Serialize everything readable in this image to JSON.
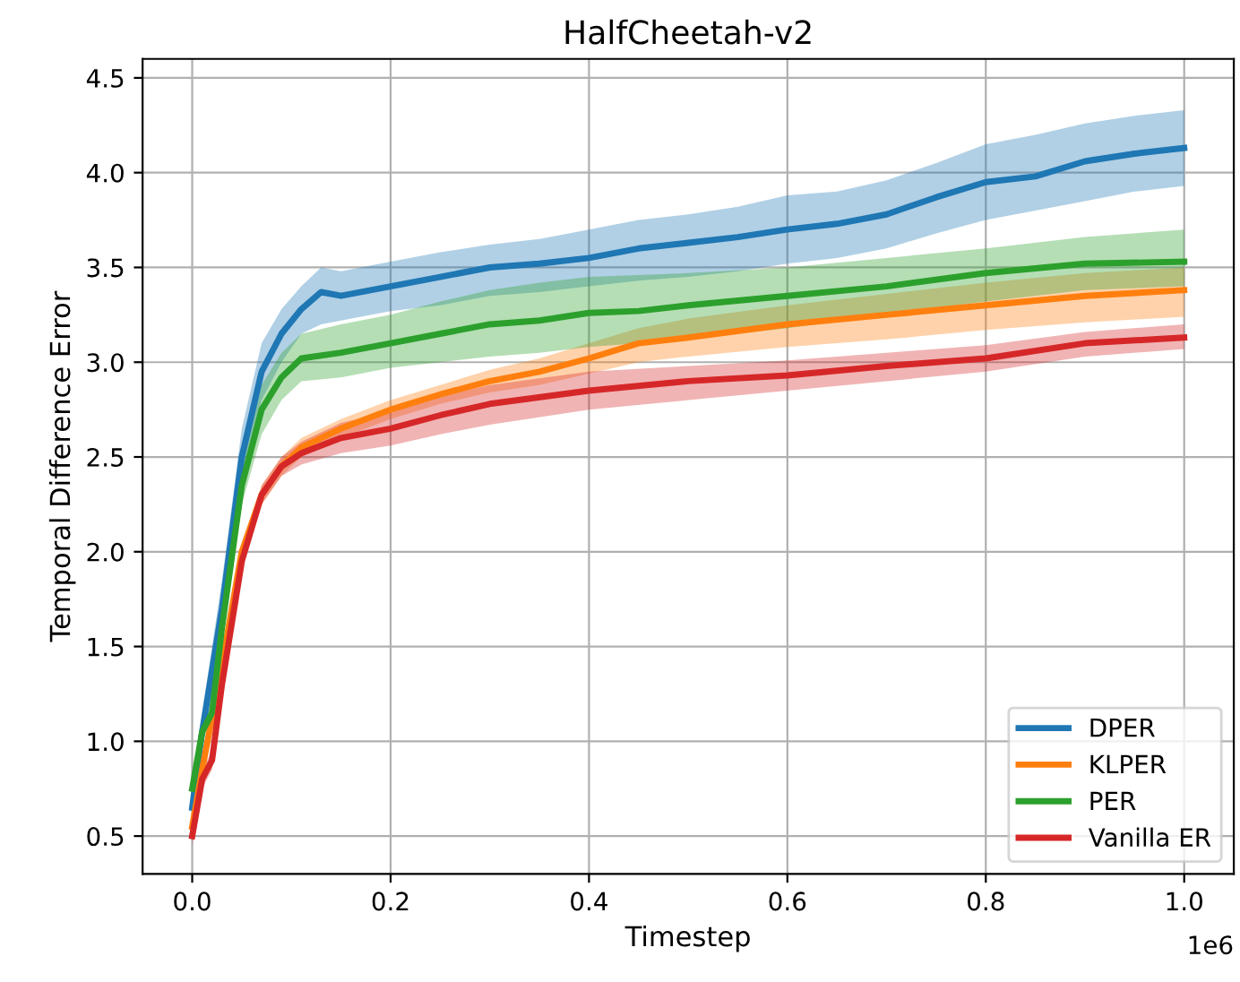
{
  "chart_data": {
    "type": "line",
    "title": "HalfCheetah-v2",
    "xlabel": "Timestep",
    "ylabel": "Temporal Difference Error",
    "annotations": [
      "1e6"
    ],
    "xlim": [
      -0.05,
      1.05
    ],
    "ylim": [
      0.3,
      4.6
    ],
    "xticks": [
      {
        "value": 0,
        "label": "0.0"
      },
      0.2,
      0.4,
      0.6,
      0.8,
      {
        "value": 1,
        "label": "1.0"
      }
    ],
    "yticks": [
      0.5,
      {
        "value": 1,
        "label": "1.0"
      },
      1.5,
      {
        "value": 2,
        "label": "2.0"
      },
      2.5,
      {
        "value": 3,
        "label": "3.0"
      },
      3.5,
      {
        "value": 4,
        "label": "4.0"
      },
      4.5
    ],
    "grid": true,
    "legend": "bottom right",
    "series": [
      {
        "name": "DPER",
        "color": "#1f77b4",
        "x": [
          0,
          0.01,
          0.03,
          0.05,
          0.07,
          0.09,
          0.11,
          0.13,
          0.15,
          0.2,
          0.25,
          0.3,
          0.35,
          0.4,
          0.45,
          0.5,
          0.55,
          0.6,
          0.65,
          0.7,
          0.75,
          0.8,
          0.85,
          0.9,
          0.95,
          1.0
        ],
        "values": [
          0.65,
          1.05,
          1.7,
          2.5,
          2.95,
          3.15,
          3.28,
          3.37,
          3.35,
          3.4,
          3.45,
          3.5,
          3.52,
          3.55,
          3.6,
          3.63,
          3.66,
          3.7,
          3.73,
          3.78,
          3.87,
          3.95,
          3.98,
          4.06,
          4.1,
          4.13
        ],
        "lower": [
          0.6,
          0.95,
          1.55,
          2.35,
          2.8,
          3.0,
          3.15,
          3.2,
          3.22,
          3.27,
          3.3,
          3.35,
          3.37,
          3.4,
          3.43,
          3.45,
          3.48,
          3.52,
          3.55,
          3.6,
          3.68,
          3.75,
          3.8,
          3.85,
          3.9,
          3.93
        ],
        "upper": [
          0.7,
          1.15,
          1.85,
          2.65,
          3.1,
          3.28,
          3.4,
          3.5,
          3.48,
          3.53,
          3.58,
          3.62,
          3.65,
          3.7,
          3.75,
          3.78,
          3.82,
          3.88,
          3.9,
          3.96,
          4.05,
          4.15,
          4.2,
          4.26,
          4.3,
          4.33
        ]
      },
      {
        "name": "KLPER",
        "color": "#ff7f0e",
        "x": [
          0,
          0.01,
          0.03,
          0.05,
          0.07,
          0.09,
          0.11,
          0.15,
          0.2,
          0.25,
          0.3,
          0.35,
          0.4,
          0.45,
          0.5,
          0.6,
          0.7,
          0.8,
          0.9,
          1.0
        ],
        "values": [
          0.55,
          0.85,
          1.4,
          2.0,
          2.3,
          2.45,
          2.55,
          2.65,
          2.75,
          2.83,
          2.9,
          2.95,
          3.02,
          3.1,
          3.13,
          3.2,
          3.25,
          3.3,
          3.35,
          3.38
        ],
        "lower": [
          0.5,
          0.8,
          1.35,
          1.95,
          2.25,
          2.4,
          2.5,
          2.6,
          2.7,
          2.78,
          2.84,
          2.88,
          2.94,
          3.0,
          3.03,
          3.08,
          3.12,
          3.17,
          3.21,
          3.24
        ],
        "upper": [
          0.6,
          0.9,
          1.45,
          2.05,
          2.35,
          2.5,
          2.6,
          2.7,
          2.8,
          2.88,
          2.96,
          3.02,
          3.1,
          3.18,
          3.23,
          3.3,
          3.36,
          3.42,
          3.47,
          3.5
        ]
      },
      {
        "name": "PER",
        "color": "#2ca02c",
        "x": [
          0,
          0.01,
          0.02,
          0.03,
          0.05,
          0.07,
          0.09,
          0.11,
          0.15,
          0.2,
          0.25,
          0.3,
          0.35,
          0.4,
          0.45,
          0.5,
          0.6,
          0.7,
          0.8,
          0.9,
          1.0
        ],
        "values": [
          0.75,
          1.05,
          1.15,
          1.6,
          2.35,
          2.75,
          2.92,
          3.02,
          3.05,
          3.1,
          3.15,
          3.2,
          3.22,
          3.26,
          3.27,
          3.3,
          3.35,
          3.4,
          3.47,
          3.52,
          3.53
        ],
        "lower": [
          0.7,
          1.0,
          1.1,
          1.5,
          2.25,
          2.62,
          2.8,
          2.9,
          2.92,
          2.97,
          3.0,
          3.03,
          3.05,
          3.08,
          3.1,
          3.12,
          3.18,
          3.25,
          3.32,
          3.38,
          3.4
        ],
        "upper": [
          0.8,
          1.1,
          1.2,
          1.7,
          2.45,
          2.88,
          3.05,
          3.15,
          3.2,
          3.25,
          3.32,
          3.38,
          3.42,
          3.45,
          3.46,
          3.47,
          3.5,
          3.55,
          3.6,
          3.66,
          3.7
        ]
      },
      {
        "name": "Vanilla ER",
        "color": "#d62728",
        "x": [
          0,
          0.01,
          0.02,
          0.03,
          0.05,
          0.07,
          0.09,
          0.11,
          0.15,
          0.2,
          0.25,
          0.3,
          0.4,
          0.5,
          0.6,
          0.7,
          0.8,
          0.9,
          1.0
        ],
        "values": [
          0.5,
          0.8,
          0.9,
          1.3,
          1.95,
          2.3,
          2.45,
          2.52,
          2.6,
          2.65,
          2.72,
          2.78,
          2.85,
          2.9,
          2.93,
          2.98,
          3.02,
          3.1,
          3.13
        ],
        "lower": [
          0.45,
          0.75,
          0.85,
          1.25,
          1.9,
          2.25,
          2.4,
          2.46,
          2.52,
          2.56,
          2.62,
          2.67,
          2.75,
          2.8,
          2.85,
          2.9,
          2.95,
          3.03,
          3.07
        ],
        "upper": [
          0.55,
          0.85,
          0.95,
          1.35,
          2.0,
          2.35,
          2.5,
          2.58,
          2.68,
          2.74,
          2.82,
          2.88,
          2.95,
          2.98,
          3.01,
          3.05,
          3.09,
          3.16,
          3.2
        ]
      }
    ]
  }
}
